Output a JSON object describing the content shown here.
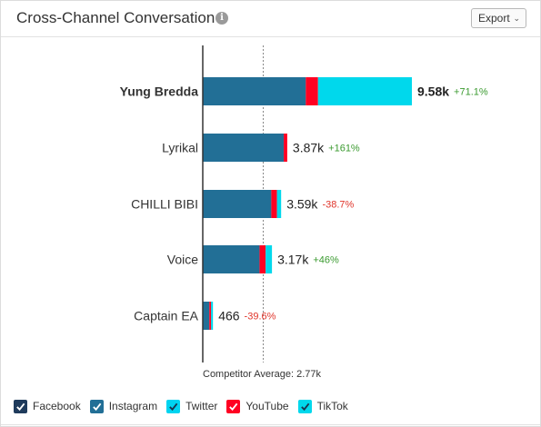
{
  "header": {
    "title": "Cross-Channel Conversation",
    "info_icon": "info-icon",
    "export_label": "Export"
  },
  "colors": {
    "Facebook": "#1f3b5c",
    "Instagram": "#226f96",
    "Twitter": "#00d4f0",
    "YouTube": "#ff0022",
    "TikTok": "#00d8ec",
    "positive": "#3a9a2f",
    "negative": "#e0352b"
  },
  "legend": [
    {
      "label": "Facebook",
      "checked": true
    },
    {
      "label": "Instagram",
      "checked": true
    },
    {
      "label": "Twitter",
      "checked": true
    },
    {
      "label": "YouTube",
      "checked": true
    },
    {
      "label": "TikTok",
      "checked": true
    }
  ],
  "chart_data": {
    "type": "bar",
    "orientation": "horizontal",
    "stacked": true,
    "categories": [
      "Yung Bredda",
      "Lyrikal",
      "CHILLI BIBI",
      "Voice",
      "Captain EA"
    ],
    "series": [
      {
        "name": "Facebook",
        "values": [
          0,
          0,
          0,
          0,
          0
        ]
      },
      {
        "name": "Instagram",
        "values": [
          4720,
          3710,
          3140,
          2600,
          300
        ]
      },
      {
        "name": "Twitter",
        "values": [
          0,
          0,
          0,
          0,
          0
        ]
      },
      {
        "name": "YouTube",
        "values": [
          560,
          160,
          260,
          280,
          80
        ]
      },
      {
        "name": "TikTok",
        "values": [
          4300,
          0,
          190,
          290,
          86
        ]
      }
    ],
    "totals": [
      "9.58k",
      "3.87k",
      "3.59k",
      "3.17k",
      "466"
    ],
    "changes": [
      "+71.1%",
      "+161%",
      "-38.7%",
      "+46%",
      "-39.6%"
    ],
    "highlighted": "Yung Bredda",
    "reference_line": {
      "value": 2770,
      "label": "Competitor Average: 2.77k"
    },
    "xlim": [
      0,
      13000
    ]
  }
}
